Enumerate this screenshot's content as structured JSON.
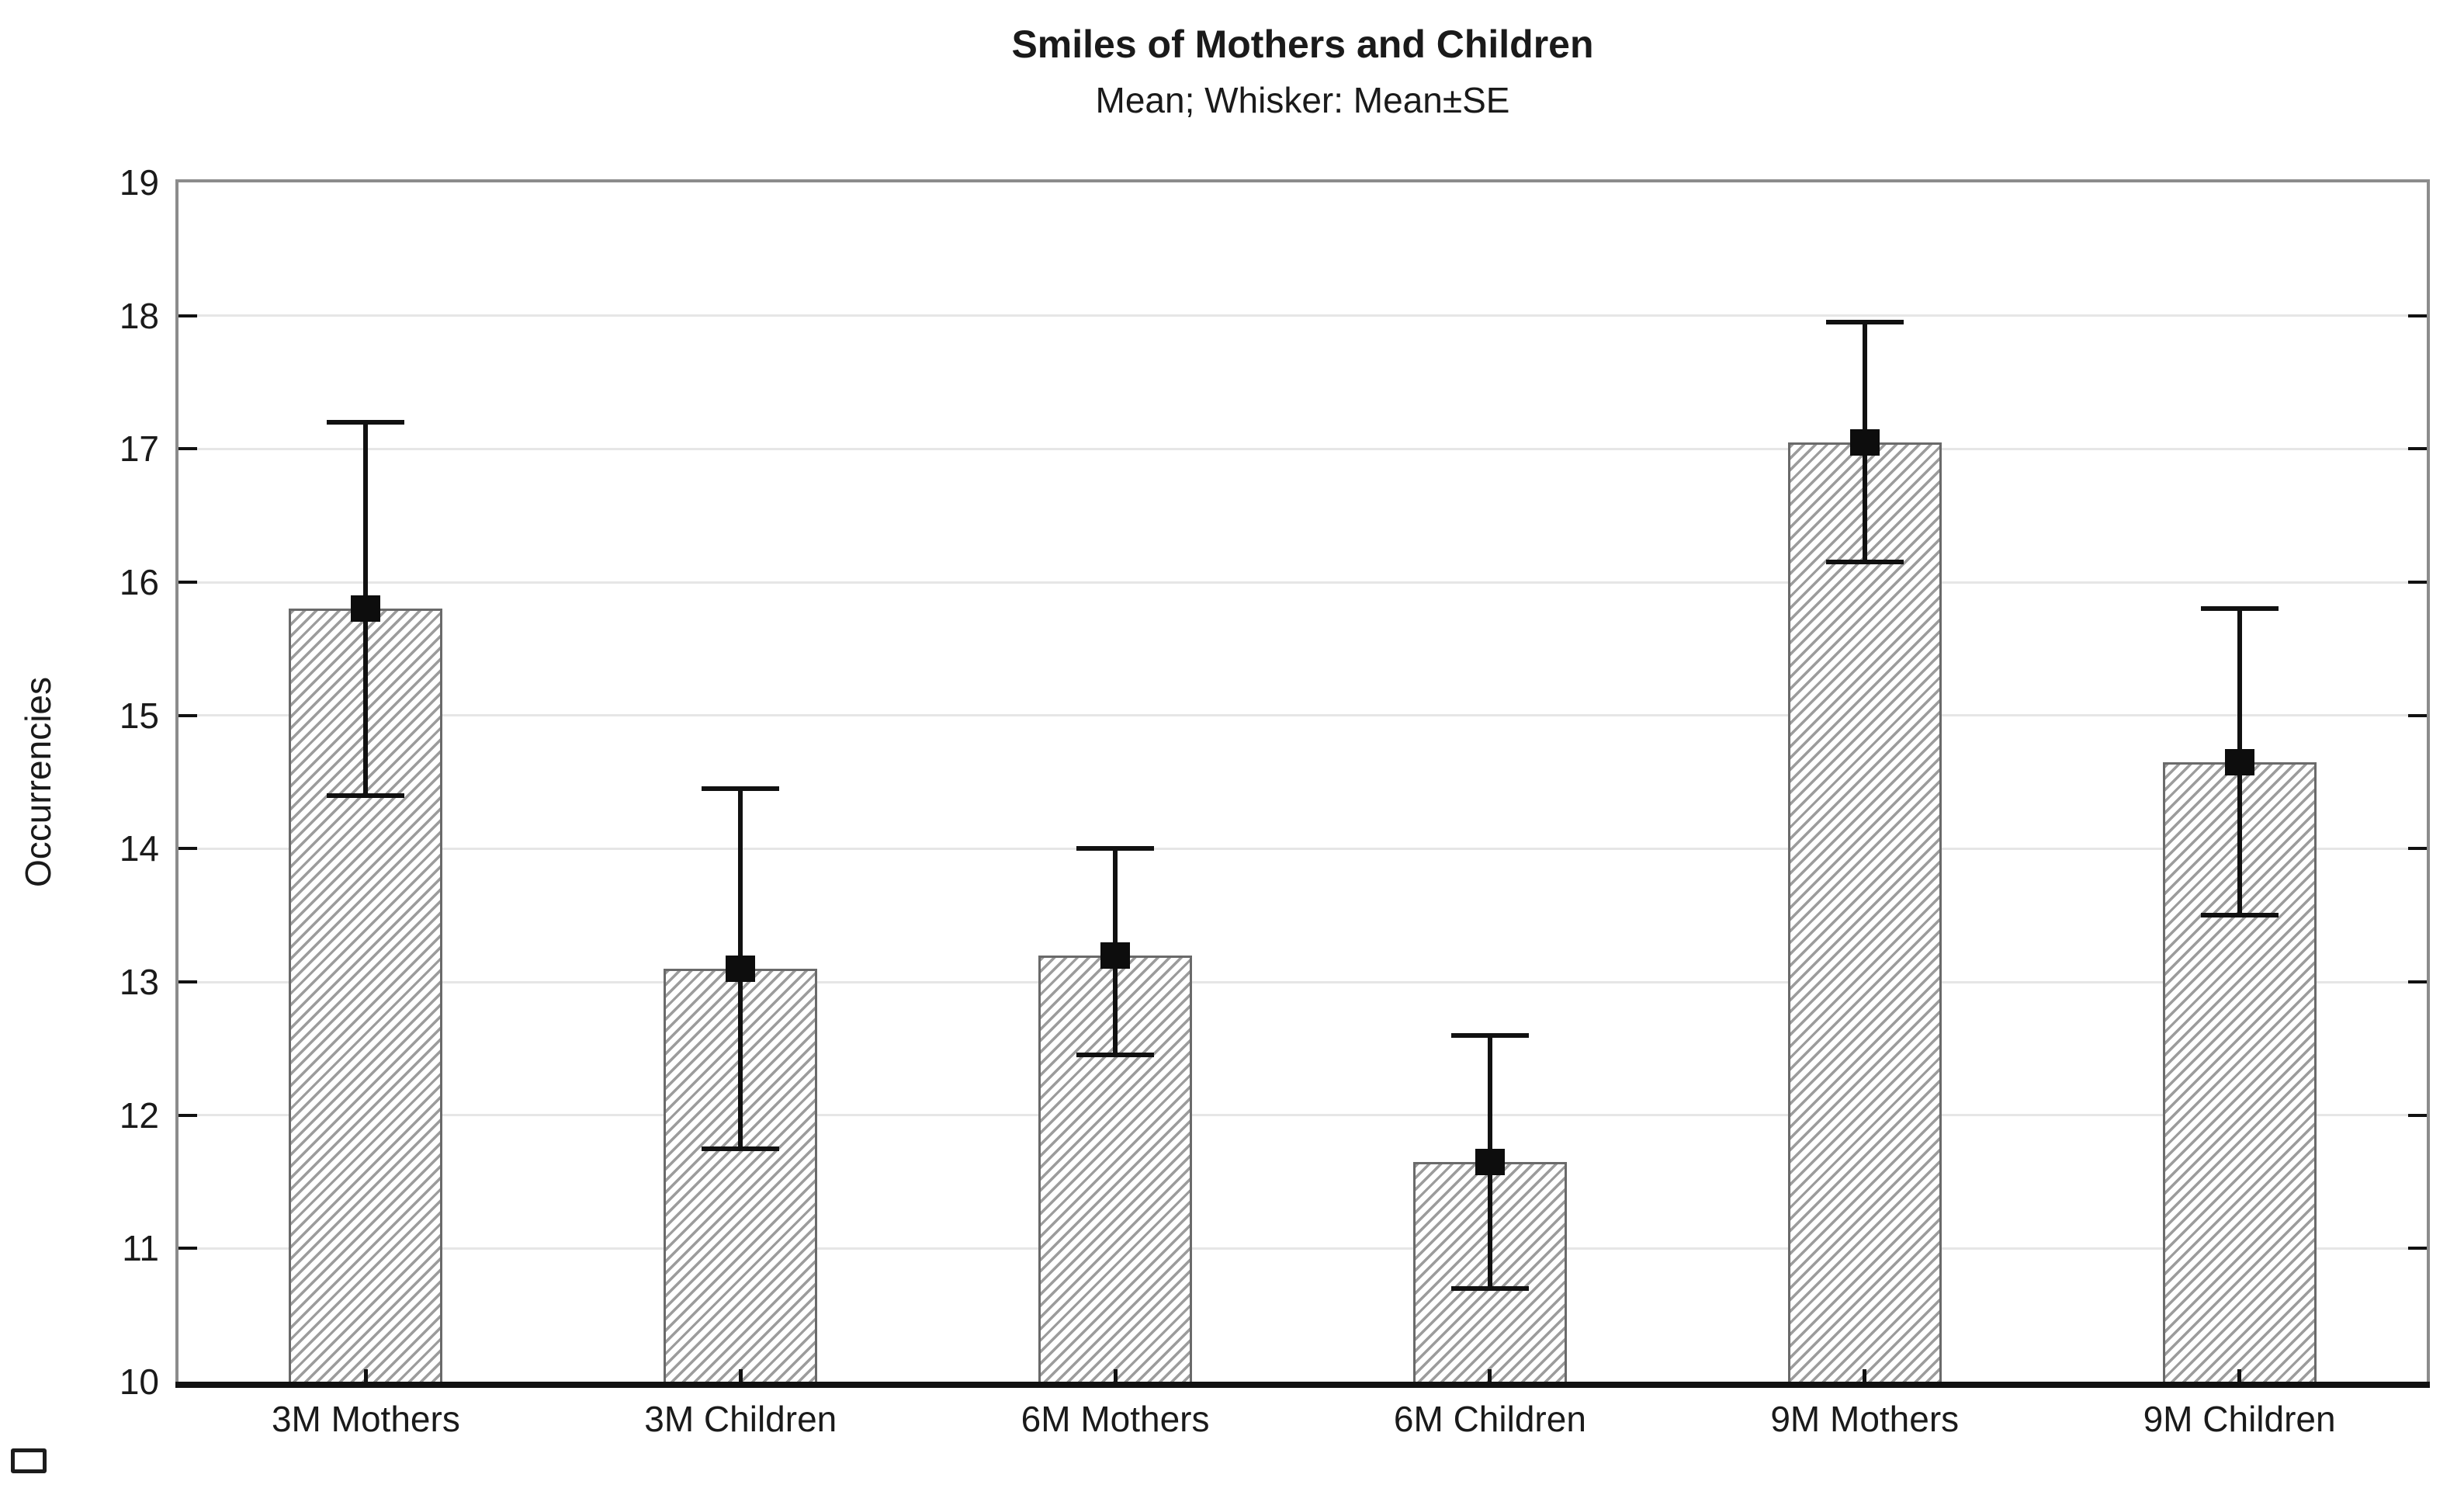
{
  "chart_data": {
    "type": "bar",
    "title": "Smiles of Mothers and Children",
    "subtitle": "Mean; Whisker: Mean±SE",
    "xlabel": "",
    "ylabel": "Occurrencies",
    "categories": [
      "3M Mothers",
      "3M Children",
      "6M Mothers",
      "6M Children",
      "9M Mothers",
      "9M Children"
    ],
    "series": [
      {
        "name": "Mean",
        "values": [
          15.8,
          13.1,
          13.2,
          11.65,
          17.05,
          14.65
        ],
        "whisker_upper": [
          17.2,
          14.45,
          14.0,
          12.6,
          17.95,
          15.8
        ],
        "whisker_lower": [
          14.4,
          11.75,
          12.45,
          10.7,
          16.15,
          13.5
        ]
      }
    ],
    "error_bars": "Mean±SE",
    "ylim": [
      10,
      19
    ],
    "yticks": [
      10,
      11,
      12,
      13,
      14,
      15,
      16,
      17,
      18,
      19
    ],
    "grid": "horizontal-light",
    "legend_position": "none",
    "bar_fill": "diagonal-hatch",
    "marker": "filled-square",
    "colors": {
      "bar_hatch": "#9c9c9c",
      "bar_border": "#6a6a6a",
      "error_bar": "#111111",
      "gridline": "#e6e6e6",
      "frame": "#8c8c8c",
      "axis_bottom": "#111111",
      "text": "#1a1a1a",
      "background": "#ffffff"
    }
  },
  "decorations": {
    "bottom_left_marker_icon": "empty-rectangle-icon"
  }
}
